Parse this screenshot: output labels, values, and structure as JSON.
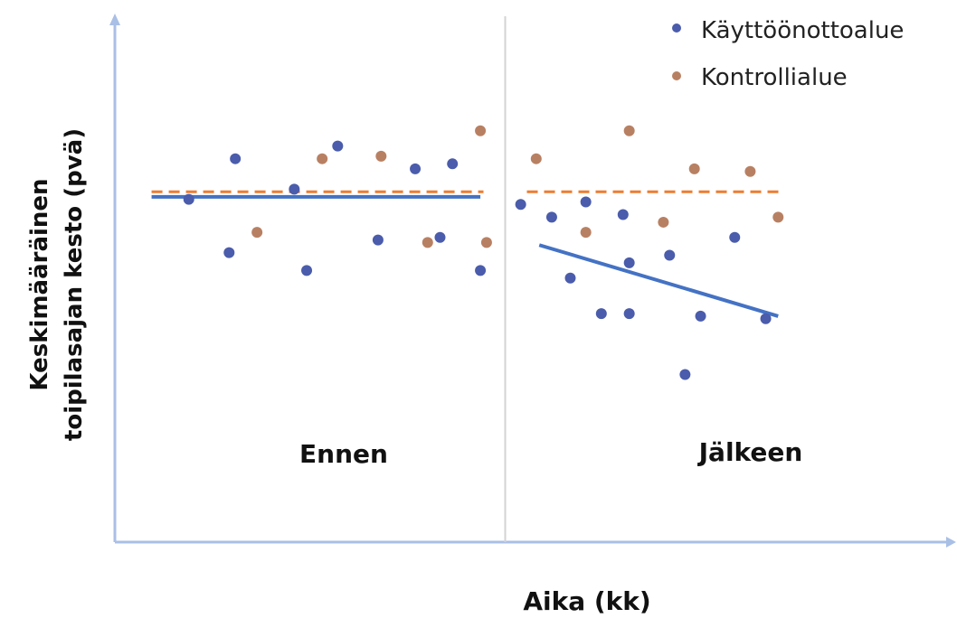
{
  "chart_data": {
    "type": "scatter",
    "title": "",
    "xlabel": "Aika (kk)",
    "ylabel_lines": [
      "Keskimääräinen",
      "toipilasajan kesto (pvä)"
    ],
    "period_labels": [
      "Ennen",
      "Jälkeen"
    ],
    "legend_position": "top-right",
    "grid": false,
    "xlim": [
      0,
      24
    ],
    "ylim": [
      0,
      10
    ],
    "divider_x": 12,
    "colors": {
      "kayttoonotto": "#4a5cab",
      "kontrolli": "#b88062"
    },
    "series": [
      {
        "name": "Käyttöönottoalue",
        "color": "#4a5cab",
        "points": [
          [
            1.8,
            6.75
          ],
          [
            3.1,
            5.7
          ],
          [
            3.3,
            7.55
          ],
          [
            5.2,
            6.95
          ],
          [
            5.6,
            5.35
          ],
          [
            6.6,
            7.8
          ],
          [
            7.9,
            5.95
          ],
          [
            9.1,
            7.35
          ],
          [
            9.9,
            6.0
          ],
          [
            10.3,
            7.45
          ],
          [
            11.2,
            5.35
          ],
          [
            12.5,
            6.65
          ],
          [
            13.5,
            6.4
          ],
          [
            14.1,
            5.2
          ],
          [
            14.6,
            6.7
          ],
          [
            15.1,
            4.5
          ],
          [
            15.8,
            6.45
          ],
          [
            16.0,
            5.5
          ],
          [
            16.0,
            4.5
          ],
          [
            17.3,
            5.65
          ],
          [
            17.8,
            3.3
          ],
          [
            18.3,
            4.45
          ],
          [
            19.4,
            6.0
          ],
          [
            20.4,
            4.4
          ]
        ],
        "trend": [
          [
            0.6,
            6.8
          ],
          [
            11.2,
            6.8
          ],
          [
            13.1,
            5.85
          ],
          [
            20.8,
            4.45
          ]
        ]
      },
      {
        "name": "Kontrollialue",
        "color": "#b88062",
        "points": [
          [
            4.0,
            6.1
          ],
          [
            6.1,
            7.55
          ],
          [
            8.0,
            7.6
          ],
          [
            9.5,
            5.9
          ],
          [
            11.2,
            8.1
          ],
          [
            11.4,
            5.9
          ],
          [
            13.0,
            7.55
          ],
          [
            14.6,
            6.1
          ],
          [
            16.0,
            8.1
          ],
          [
            17.1,
            6.3
          ],
          [
            18.1,
            7.35
          ],
          [
            19.9,
            7.3
          ],
          [
            20.8,
            6.4
          ]
        ],
        "trend": [
          [
            0.6,
            6.9
          ],
          [
            11.3,
            6.9
          ],
          [
            12.7,
            6.9
          ],
          [
            21.0,
            6.9
          ]
        ]
      }
    ]
  }
}
